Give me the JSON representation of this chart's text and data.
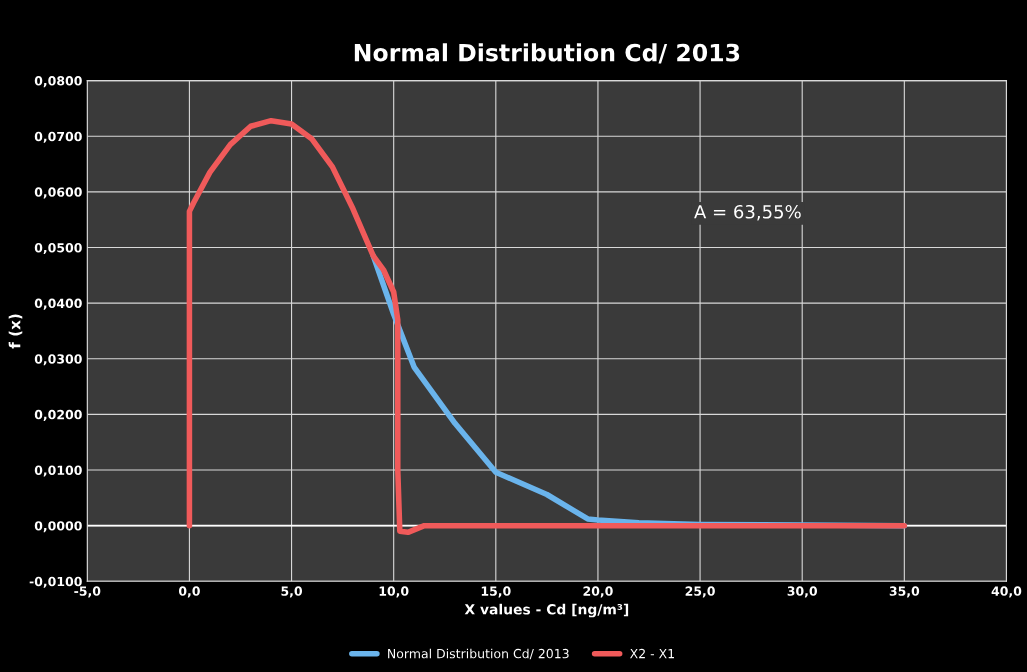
{
  "chart_data": {
    "type": "line",
    "title": "Normal Distribution Cd/ 2013",
    "xlabel": "X values - Cd [ng/m³]",
    "ylabel": "f (x)",
    "annotations": [
      "A = 63,55%"
    ],
    "series": [
      {
        "name": "Normal Distribution Cd/ 2013",
        "color": "#6ab4ec",
        "x": [
          9,
          10,
          11,
          13,
          15,
          17.5,
          19.5,
          20,
          22,
          25,
          30,
          35
        ],
        "values": [
          0.0485,
          0.038,
          0.0285,
          0.0184,
          0.0096,
          0.0056,
          0.0012,
          0.001,
          0.0005,
          0.0002,
          0.0001,
          0
        ]
      },
      {
        "name": "X2 - X1",
        "color": "#f05a5a",
        "x": [
          0,
          0,
          0.2,
          1,
          2,
          3,
          4,
          5,
          6,
          7,
          8,
          9,
          9.5,
          10,
          10.2,
          10.2,
          10.3,
          10.7,
          11.5,
          20,
          35
        ],
        "values": [
          0,
          0.0565,
          0.058,
          0.0635,
          0.0685,
          0.0718,
          0.0728,
          0.0722,
          0.0695,
          0.0645,
          0.057,
          0.0485,
          0.046,
          0.042,
          0.037,
          0.01,
          -0.001,
          -0.0012,
          0,
          0,
          0
        ]
      }
    ],
    "xlim": [
      -5,
      40
    ],
    "xticks": [
      {
        "value": -5,
        "label": "-5,0"
      },
      {
        "value": 0,
        "label": "0,0"
      },
      {
        "value": 5,
        "label": "5,0"
      },
      {
        "value": 10,
        "label": "10,0"
      },
      {
        "value": 15,
        "label": "15,0"
      },
      {
        "value": 20,
        "label": "20,0"
      },
      {
        "value": 25,
        "label": "25,0"
      },
      {
        "value": 30,
        "label": "30,0"
      },
      {
        "value": 35,
        "label": "35,0"
      },
      {
        "value": 40,
        "label": "40,0"
      }
    ],
    "ylim": [
      -0.01,
      0.08
    ],
    "yticks": [
      {
        "value": -0.01,
        "label": "-0,0100"
      },
      {
        "value": 0,
        "label": "0,0000"
      },
      {
        "value": 0.01,
        "label": "0,0100"
      },
      {
        "value": 0.02,
        "label": "0,0200"
      },
      {
        "value": 0.03,
        "label": "0,0300"
      },
      {
        "value": 0.04,
        "label": "0,0400"
      },
      {
        "value": 0.05,
        "label": "0,0500"
      },
      {
        "value": 0.06,
        "label": "0,0600"
      },
      {
        "value": 0.07,
        "label": "0,0700"
      },
      {
        "value": 0.08,
        "label": "0,0800"
      }
    ],
    "grid": true,
    "legend": "bottom",
    "marker": "none",
    "line_style": "solid"
  }
}
